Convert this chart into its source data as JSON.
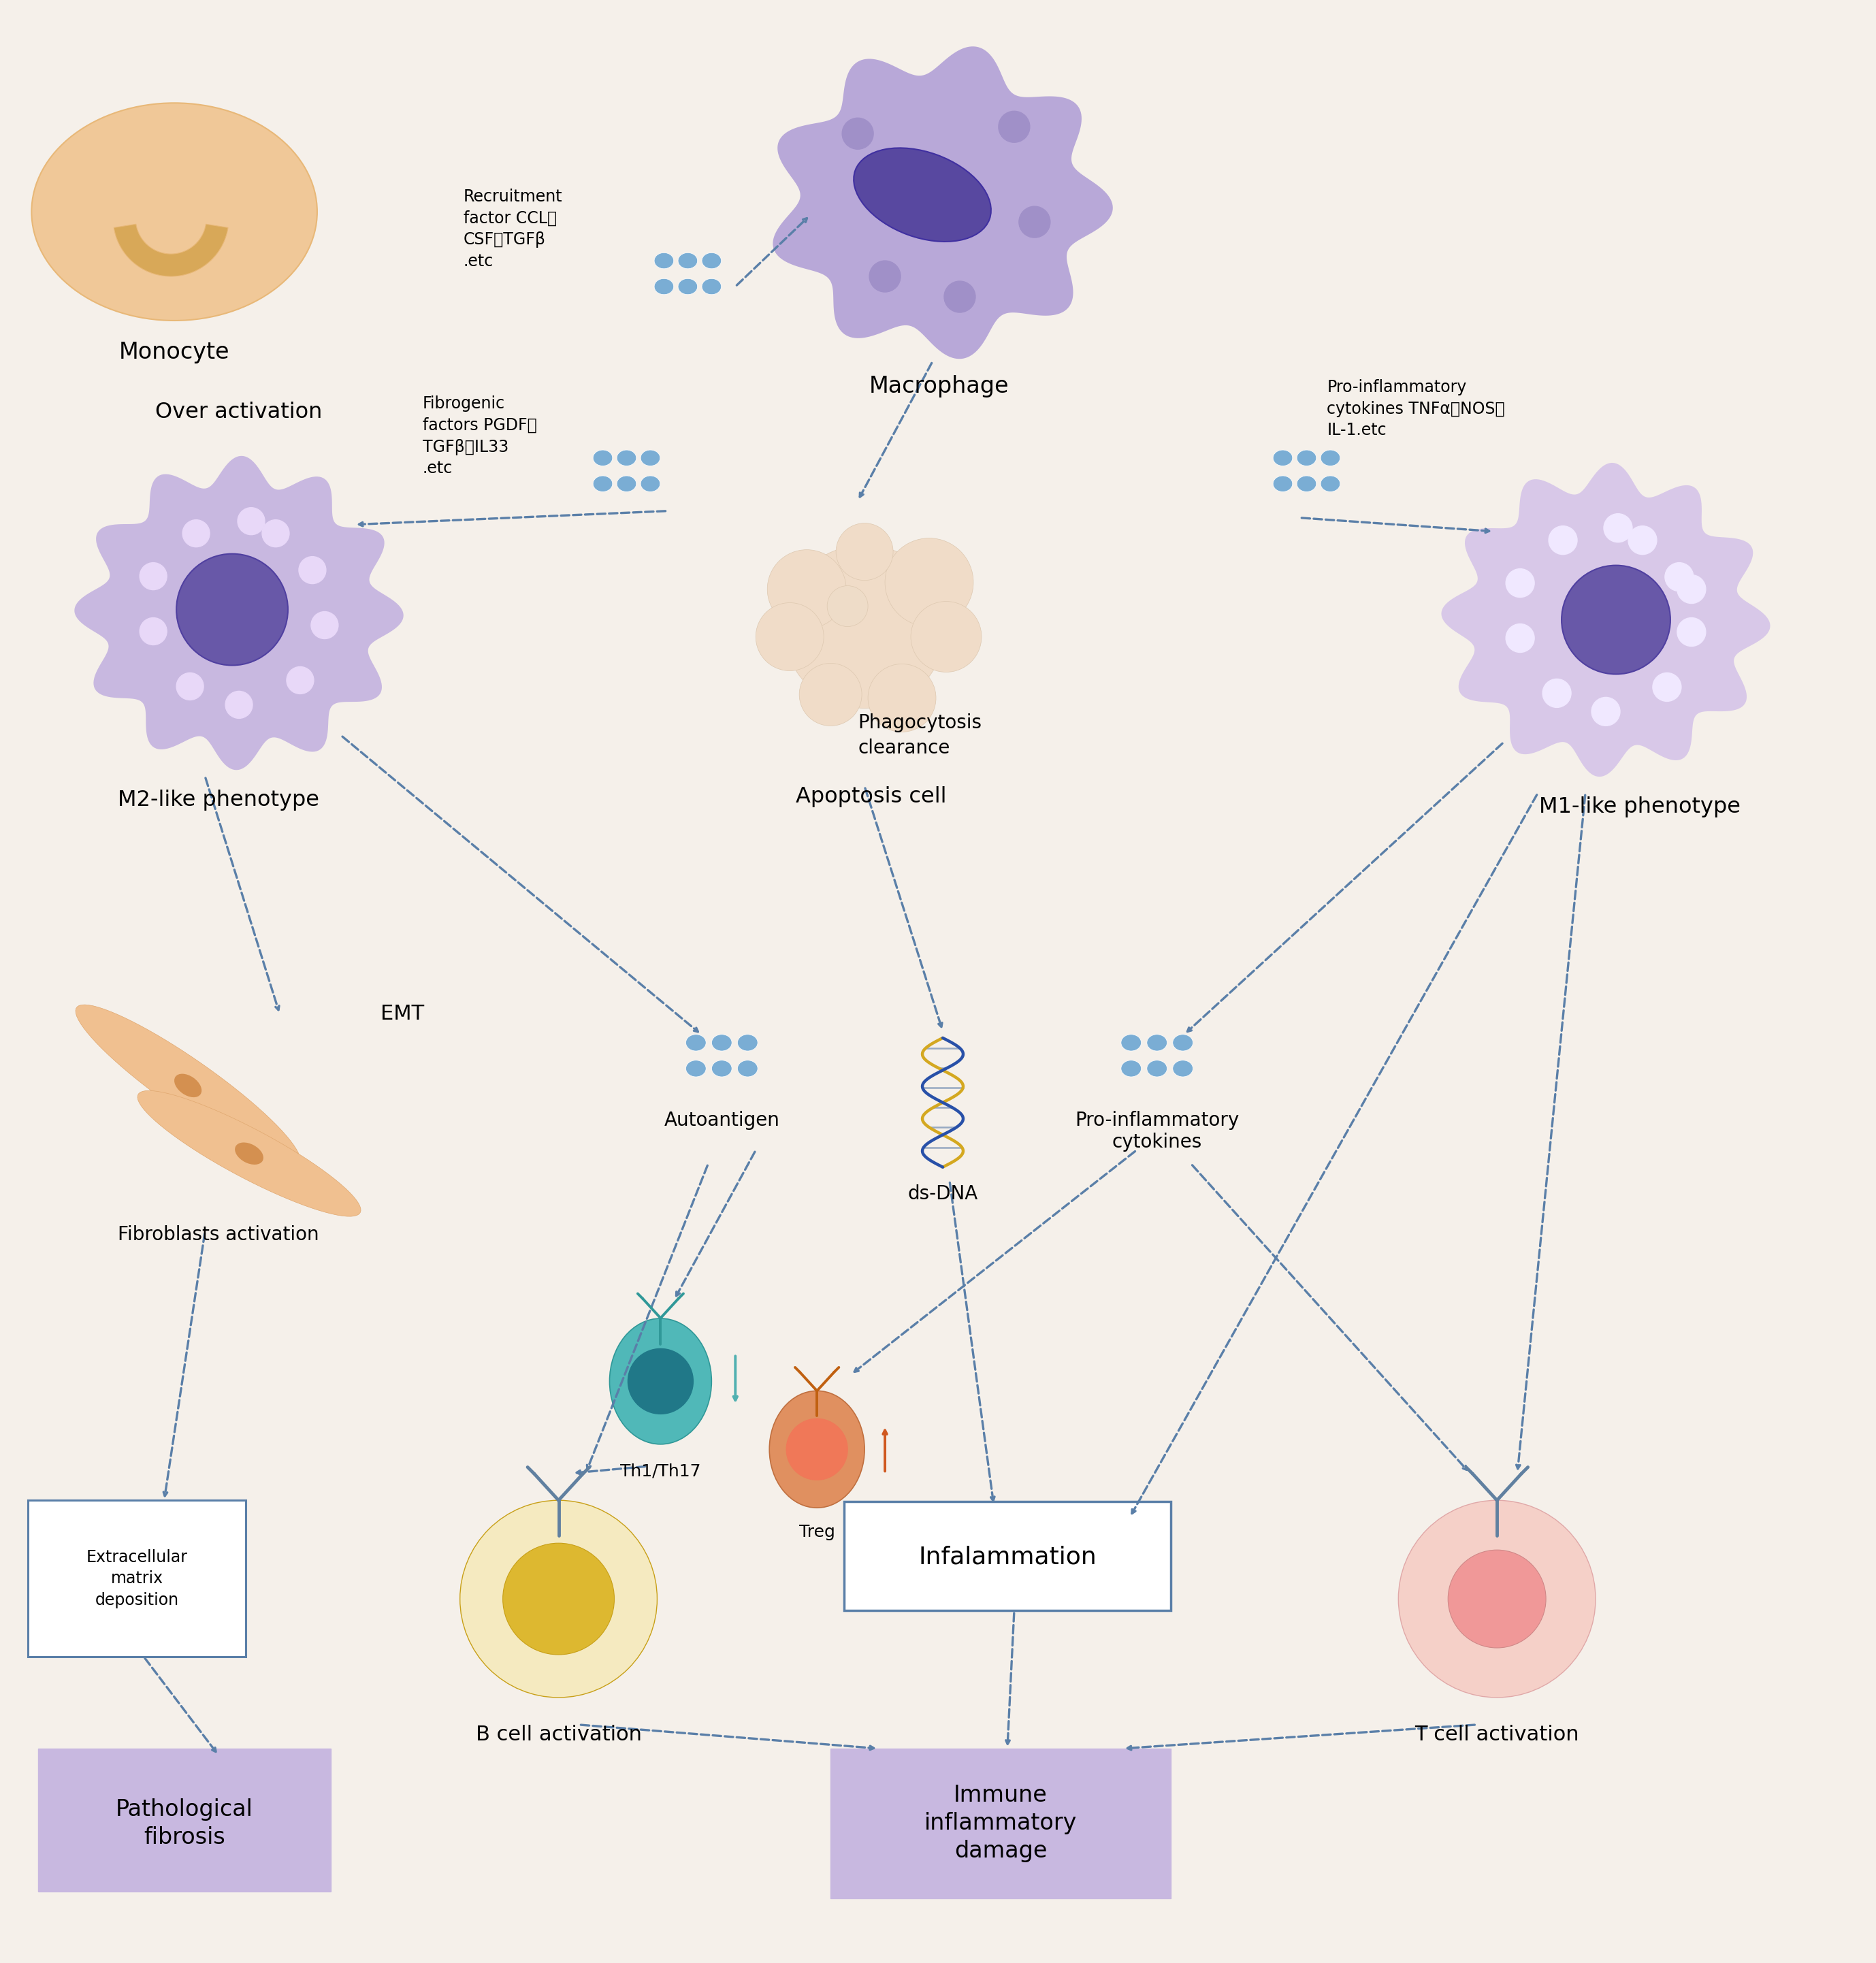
{
  "background_color": "#f5f0ea",
  "arrow_color": "#5a7fa8",
  "dot_color": "#7aadd4",
  "macrophage_body": "#b8a8d8",
  "macrophage_dark": "#a090c8",
  "macrophage_nucleus": "#5848a0",
  "monocyte_body": "#f0c898",
  "monocyte_body_edge": "#e8b878",
  "monocyte_nucleus": "#d8a858",
  "apoptosis_color": "#f0dcc8",
  "m2_body": "#c8b8e0",
  "m2_nucleus": "#6858a8",
  "m1_body": "#d8c8e8",
  "m1_nucleus": "#6858a8",
  "fibroblast_color": "#f0c090",
  "fibroblast_edge": "#e0a870",
  "fibroblast_nucleus": "#d49050",
  "bcell_outer": "#f5eac0",
  "bcell_inner": "#ddb830",
  "bcell_edge": "#c8a018",
  "tcell_outer": "#f5d0c8",
  "tcell_inner": "#f09898",
  "th17_body": "#50b8b8",
  "th17_body_edge": "#309898",
  "th17_inner": "#207888",
  "treg_body": "#e09060",
  "treg_body_edge": "#c07040",
  "treg_inner": "#f07858",
  "dsdna_gold": "#d4a820",
  "dsdna_blue": "#2850a8",
  "box_stroke": "#5a7fa8",
  "box_fibrosis_fill": "#c8b8e0",
  "box_immune_fill": "#c8b8e0",
  "texts": {
    "macrophage": "Macrophage",
    "monocyte": "Monocyte",
    "apoptosis": "Apoptosis cell",
    "m2": "M2-like phenotype",
    "m1": "M1-like phenotype",
    "over_activation": "Over activation",
    "phagocytosis": "Phagocytosis\nclearance",
    "recruitment": "Recruitment\nfactor CCL、\nCSF、TGFβ\n.etc",
    "fibrogenic": "Fibrogenic\nfactors PGDF、\nTGFβ、IL33\n.etc",
    "pro_inflam_right": "Pro-inflammatory\ncytokines TNFα、NOS、\nIL-1.etc",
    "emt": "EMT",
    "fibroblasts": "Fibroblasts activation",
    "extracellular": "Extracellular\nmatrix\ndeposition",
    "pathological": "Pathological\nfibrosis",
    "autoantigen": "Autoantigen",
    "dsdna": "ds-DNA",
    "pro_inflam_bottom": "Pro-inflammatory\ncytokines",
    "th1th17": "Th1/Th17",
    "treg": "Treg",
    "bcell": "B cell activation",
    "tcell": "T cell activation",
    "inflammation": "Infalammation",
    "immune_damage": "Immune\ninflammatory\ndamage"
  }
}
